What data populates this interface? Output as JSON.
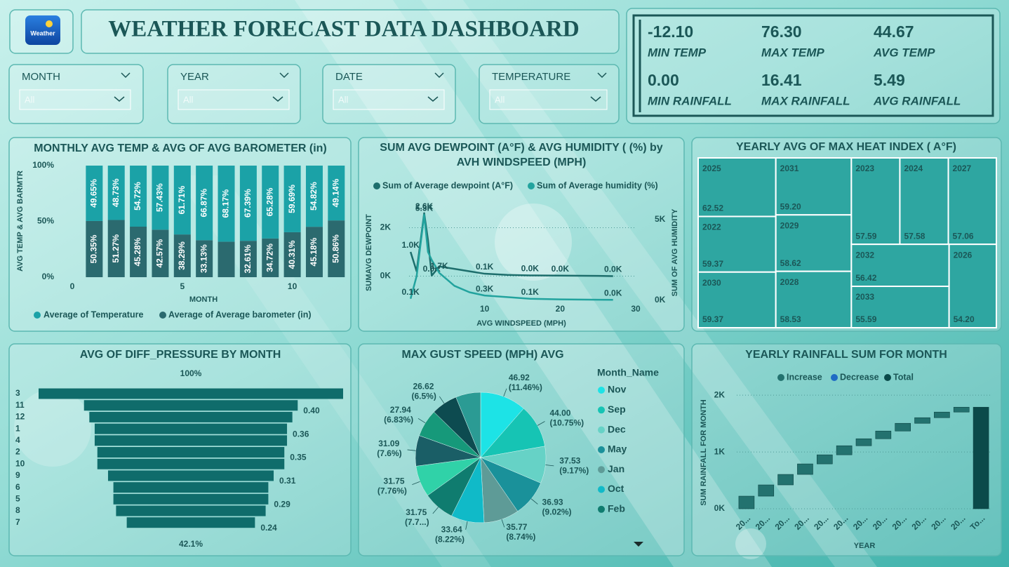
{
  "header": {
    "logo_text": "Weather",
    "title": "WEATHER FORECAST DATA DASHBOARD"
  },
  "kpis": [
    {
      "value": "-12.10",
      "label": "MIN TEMP"
    },
    {
      "value": "76.30",
      "label": "MAX TEMP"
    },
    {
      "value": "44.67",
      "label": "AVG TEMP"
    },
    {
      "value": "0.00",
      "label": "MIN RAINFALL"
    },
    {
      "value": "16.41",
      "label": "MAX RAINFALL"
    },
    {
      "value": "5.49",
      "label": "AVG RAINFALL"
    }
  ],
  "filters": [
    {
      "label": "MONTH",
      "selection": "All"
    },
    {
      "label": "YEAR",
      "selection": "All"
    },
    {
      "label": "DATE",
      "selection": "All"
    },
    {
      "label": "TEMPERATURE",
      "selection": "All"
    }
  ],
  "chart_data": [
    {
      "type": "stacked_bar_100",
      "title": "MONTHLY AVG TEMP & AVG OF AVG BAROMETER (in)",
      "x_label": "MONTH",
      "y_label": "AVG TEMP & AVG BARMTR",
      "x": [
        1,
        2,
        3,
        4,
        5,
        6,
        7,
        8,
        9,
        10,
        11,
        12
      ],
      "xlim": [
        0,
        12.5
      ],
      "xticks": [
        0,
        5,
        10
      ],
      "ylim": [
        0,
        100
      ],
      "yticks": [
        {
          "value": 0,
          "label": "0%"
        },
        {
          "value": 50,
          "label": "50%"
        },
        {
          "value": 100,
          "label": "100%"
        }
      ],
      "series": [
        {
          "name": "Average of  Temperature",
          "color": "#1ba2a7",
          "values": [
            49.65,
            48.73,
            54.72,
            57.43,
            61.71,
            66.87,
            68.17,
            67.39,
            65.28,
            59.69,
            54.82,
            49.14
          ],
          "value_labels": [
            "49.65%",
            "48.73%",
            "54.72%",
            "57.43%",
            "61.71%",
            "66.87%",
            "68.17%",
            "67.39%",
            "65.28%",
            "59.69%",
            "54.82%",
            "49.14%"
          ]
        },
        {
          "name": "Average of  Average barometer (in)",
          "color": "#2b6a6f",
          "values": [
            50.35,
            51.27,
            45.28,
            42.57,
            38.29,
            33.13,
            31.83,
            32.61,
            34.72,
            40.31,
            45.18,
            50.86
          ],
          "value_labels": [
            "50.35%",
            "51.27%",
            "45.28%",
            "42.57%",
            "38.29%",
            "33.13%",
            null,
            "32.61%",
            "34.72%",
            "40.31%",
            "45.18%",
            "50.86%"
          ]
        }
      ]
    },
    {
      "type": "line",
      "title": "SUM AVG DEWPOINT (A°F) & AVG HUMIDITY ( (%) by AVH WINDSPEED (MPH)",
      "x_label": "AVG WINDSPEED (MPH)",
      "y_label": "SUMAVG DEWPOINT",
      "y2_label": "SUM OF AVG HUMIDITY",
      "x": [
        0.2,
        1,
        2,
        2.5,
        3,
        4,
        6,
        8,
        10,
        13,
        16,
        20,
        25,
        27
      ],
      "xlim": [
        0,
        30
      ],
      "xticks": [
        10,
        20,
        30
      ],
      "ylim": [
        -1000,
        3000
      ],
      "yticks": [
        {
          "value": 0,
          "label": "0K"
        },
        {
          "value": 2000,
          "label": "2K"
        }
      ],
      "y2lim": [
        0,
        6000
      ],
      "y2ticks": [
        {
          "value": 0,
          "label": "0K"
        },
        {
          "value": 5000,
          "label": "5K"
        }
      ],
      "grid": true,
      "series": [
        {
          "name": "Sum of  Average dewpoint (A°F)",
          "color": "#1d6e6c",
          "axis": "y",
          "values": [
            1000,
            200,
            2600,
            1500,
            20,
            400,
            300,
            200,
            100,
            50,
            30,
            20,
            10,
            0
          ],
          "value_labels": [
            "1.0K",
            null,
            "2.6K",
            null,
            "0.0K",
            null,
            null,
            null,
            "0.1K",
            null,
            "0.0K",
            "0.0K",
            null,
            "0.0K"
          ]
        },
        {
          "name": "Sum of  Average humidity (%)",
          "color": "#22a39e",
          "axis": "y2",
          "values": [
            100,
            1500,
            5300,
            3000,
            2500,
            1700,
            900,
            500,
            300,
            200,
            100,
            60,
            40,
            30
          ],
          "value_labels": [
            "0.1K",
            null,
            "5.3K",
            null,
            null,
            "1.7K",
            null,
            null,
            "0.3K",
            null,
            "0.1K",
            null,
            null,
            "0.0K"
          ]
        }
      ]
    },
    {
      "type": "treemap",
      "title": "YEARLY AVG OF MAX HEAT INDEX ( A°F)",
      "color": "#2ea6a1",
      "categories": [
        "2025",
        "2022",
        "2030",
        "2031",
        "2029",
        "2028",
        "2023",
        "2024",
        "2027",
        "2032",
        "2033",
        "2026"
      ],
      "values": [
        62.52,
        59.37,
        59.37,
        59.2,
        58.62,
        58.53,
        57.59,
        57.58,
        57.06,
        56.42,
        55.59,
        54.2
      ],
      "value_labels": [
        "62.52",
        "59.37",
        "59.37",
        "59.20",
        "58.62",
        "58.53",
        "57.59",
        "57.58",
        "57.06",
        "56.42",
        "55.59",
        "54.20"
      ]
    },
    {
      "type": "funnel",
      "title": "AVG OF DIFF_PRESSURE BY MONTH",
      "color": "#0f6c6b",
      "top_label": "100%",
      "bottom_label": "42.1%",
      "categories": [
        "3",
        "11",
        "12",
        "1",
        "4",
        "2",
        "10",
        "9",
        "6",
        "5",
        "8",
        "7"
      ],
      "values": [
        0.57,
        0.4,
        0.38,
        0.36,
        0.36,
        0.35,
        0.35,
        0.31,
        0.29,
        0.29,
        0.28,
        0.24
      ],
      "value_labels": [
        null,
        "0.40",
        null,
        "0.36",
        null,
        "0.35",
        null,
        "0.31",
        null,
        "0.29",
        null,
        "0.24"
      ]
    },
    {
      "type": "pie",
      "title": "MAX GUST SPEED (MPH) AVG",
      "legend_title": "Month_Name",
      "categories": [
        "Nov",
        "Sep",
        "Dec",
        "May",
        "Jan",
        "Oct",
        "Feb",
        null,
        null,
        null,
        null,
        null
      ],
      "values": [
        46.92,
        44.0,
        37.53,
        36.93,
        35.77,
        33.64,
        31.75,
        31.75,
        31.09,
        27.94,
        26.62,
        25.34
      ],
      "value_labels": [
        "46.92 (11.46%)",
        "44.00 (10.75%)",
        "37.53 (9.17%)",
        "36.93 (9.02%)",
        "35.77 (8.74%)",
        "33.64 (8.22%)",
        "31.75 (7.7...)",
        "31.75 (7.76%)",
        "31.09 (7.6%)",
        "27.94 (6.83%)",
        "26.62 (6.5%)",
        null
      ],
      "colors": [
        "#1de3e6",
        "#16c4b4",
        "#66d2c6",
        "#1a919a",
        "#5e9b97",
        "#10bac8",
        "#0f7c6f",
        "#30d2a8",
        "#1a5e66",
        "#16997a",
        "#0d4b50",
        "#2b9b94"
      ]
    },
    {
      "type": "waterfall",
      "title": "YEARLY RAINFALL SUM FOR MONTH",
      "x_label": "YEAR",
      "y_label": "SUM RAINFALL FOR MONTH",
      "legend": [
        {
          "name": "Increase",
          "color": "#23726f"
        },
        {
          "name": "Decrease",
          "color": "#1f6bc4"
        },
        {
          "name": "Total",
          "color": "#0b4a4a"
        }
      ],
      "categories": [
        "20...",
        "20...",
        "20...",
        "20...",
        "20...",
        "20...",
        "20...",
        "20...",
        "20...",
        "20...",
        "20...",
        "20...",
        "To..."
      ],
      "values": [
        222,
        198,
        185,
        185,
        160,
        160,
        123,
        136,
        136,
        99,
        99,
        86,
        1789
      ],
      "measure": [
        "Increase",
        "Increase",
        "Increase",
        "Increase",
        "Increase",
        "Increase",
        "Increase",
        "Increase",
        "Increase",
        "Increase",
        "Increase",
        "Increase",
        "Total"
      ],
      "ylim": [
        0,
        2200
      ],
      "yticks": [
        {
          "value": 0,
          "label": "0K"
        },
        {
          "value": 1000,
          "label": "1K"
        },
        {
          "value": 2000,
          "label": "2K"
        }
      ],
      "grid": true
    }
  ]
}
